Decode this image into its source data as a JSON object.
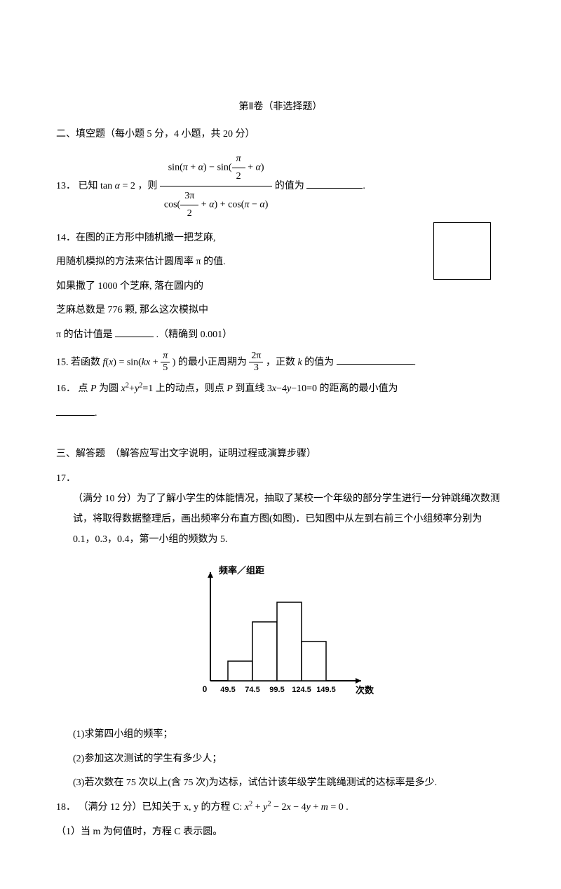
{
  "header": {
    "part_title": "第Ⅱ卷（非选择题）"
  },
  "section2": {
    "title": "二、填空题（每小题 5 分，4 小题，共 20 分）",
    "q13": {
      "num": "13．",
      "pre": "已知",
      "eq_lhs": "tan α = 2",
      "mid": "，则",
      "num_expr_l": "sin(π + α) − sin(",
      "num_frac_num": "π",
      "num_frac_den": "2",
      "num_expr_r": " + α)",
      "den_expr_l": "cos(",
      "den_frac1_num": "3π",
      "den_frac1_den": "2",
      "den_expr_m": " + α) + cos(π − α)",
      "post": " 的值为",
      "end": "."
    },
    "q14": {
      "num": "14．",
      "l1": "在图的正方形中随机撒一把芝麻,",
      "l2": "用随机模拟的方法来估计圆周率 π 的值.",
      "l3": "如果撒了 1000 个芝麻, 落在圆内的",
      "l4": "芝麻总数是 776 颗, 那么这次模拟中",
      "l5_pre": "π 的估计值是",
      "l5_post": ".（精确到 0.001）"
    },
    "q15": {
      "num": "15.",
      "pre": " 若函数 ",
      "fx_l": "f(x) = sin(kx + ",
      "frac1_num": "π",
      "frac1_den": "5",
      "fx_r": ")",
      "mid1": " 的最小正周期为 ",
      "frac2_num": "2π",
      "frac2_den": "3",
      "mid2": " ，正数 ",
      "kvar": "k",
      "post": " 的值为",
      "end": "."
    },
    "q16": {
      "num": "16．",
      "pre": "点 ",
      "P": "P",
      "t1": " 为圆 ",
      "circle": "x² + y² = 1",
      "t2": " 上的动点，则点 ",
      "t3": " 到直线 ",
      "line": "3x − 4y − 10 = 0",
      "t4": " 的距离的最小值为",
      "end": "."
    }
  },
  "section3": {
    "title": "三、解答题　（解答应写出文字说明，证明过程或演算步骤）",
    "q17": {
      "num": "17．",
      "lead": "（满分 10 分）为了了解小学生的体能情况，抽取了某校一个年级的部分学生进行一分钟跳绳次数测试，将取得数据整理后，画出频率分布直方图(如图)．已知图中从左到右前三个小组频率分别为 0.1，0.3，0.4，第一小组的频数为 5.",
      "chart": {
        "ylabel": "频率／组距",
        "xlabel": "次数",
        "xticks": [
          "0",
          "49.5",
          "74.5",
          "99.5",
          "124.5",
          "149.5"
        ],
        "bar_heights": [
          0.1,
          0.3,
          0.4,
          0.2
        ],
        "axis_color": "#000000",
        "bar_fill": "#ffffff",
        "bar_stroke": "#000000",
        "font_size": 13,
        "font_weight": "bold"
      },
      "p1": "(1)求第四小组的频率；",
      "p2": "(2)参加这次测试的学生有多少人；",
      "p3": "(3)若次数在 75 次以上(含 75 次)为达标，试估计该年级学生跳绳测试的达标率是多少."
    },
    "q18": {
      "num": "18．",
      "lead_pre": "（满分 12 分）已知关于 x, y 的方程 C: ",
      "eq": "x² + y² − 2x − 4y + m = 0",
      "lead_post": ".",
      "p1": "（1）当 m 为何值时，方程 C 表示圆。"
    }
  }
}
